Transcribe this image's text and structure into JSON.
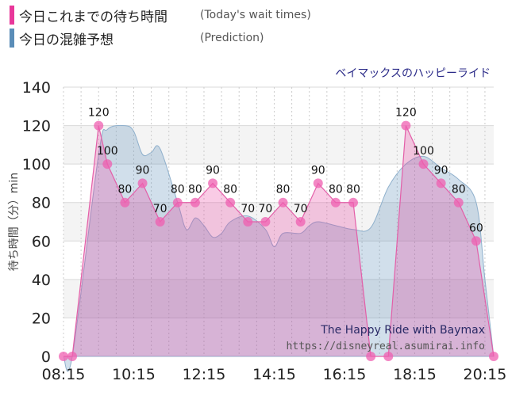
{
  "legend": [
    {
      "label": "今日これまでの待ち時間",
      "en": "(Today's wait times)",
      "color": "#e8379a"
    },
    {
      "label": "今日の混雑予想",
      "en": "(Prediction)",
      "color": "#5a8db8"
    }
  ],
  "chart_data": {
    "type": "area",
    "title": "ベイマックスのハッピーライド",
    "ylabel": "待ち時間（分）min",
    "ylim": [
      0,
      140
    ],
    "yticks": [
      0,
      20,
      40,
      60,
      80,
      100,
      120,
      140
    ],
    "xlim": [
      "08:15",
      "20:30"
    ],
    "xticks": [
      "08:15",
      "10:15",
      "12:15",
      "14:15",
      "16:15",
      "18:15",
      "20:15"
    ],
    "grid": true,
    "series": [
      {
        "name": "今日これまでの待ち時間",
        "color": "#e8379a",
        "points": [
          {
            "t": "08:15",
            "v": 0,
            "label": ""
          },
          {
            "t": "08:30",
            "v": 0,
            "label": ""
          },
          {
            "t": "09:15",
            "v": 120,
            "label": "120"
          },
          {
            "t": "09:30",
            "v": 100,
            "label": "100"
          },
          {
            "t": "10:00",
            "v": 80,
            "label": "80"
          },
          {
            "t": "10:30",
            "v": 90,
            "label": "90"
          },
          {
            "t": "11:00",
            "v": 70,
            "label": "70"
          },
          {
            "t": "11:30",
            "v": 80,
            "label": "80"
          },
          {
            "t": "12:00",
            "v": 80,
            "label": "80"
          },
          {
            "t": "12:30",
            "v": 90,
            "label": "90"
          },
          {
            "t": "13:00",
            "v": 80,
            "label": "80"
          },
          {
            "t": "13:30",
            "v": 70,
            "label": "70"
          },
          {
            "t": "14:00",
            "v": 70,
            "label": "70"
          },
          {
            "t": "14:30",
            "v": 80,
            "label": "80"
          },
          {
            "t": "15:00",
            "v": 70,
            "label": "70"
          },
          {
            "t": "15:30",
            "v": 90,
            "label": "90"
          },
          {
            "t": "16:00",
            "v": 80,
            "label": "80"
          },
          {
            "t": "16:30",
            "v": 80,
            "label": "80"
          },
          {
            "t": "17:00",
            "v": 0,
            "label": ""
          },
          {
            "t": "17:30",
            "v": 0,
            "label": ""
          },
          {
            "t": "18:00",
            "v": 120,
            "label": "120"
          },
          {
            "t": "18:30",
            "v": 100,
            "label": "100"
          },
          {
            "t": "19:00",
            "v": 90,
            "label": "90"
          },
          {
            "t": "19:30",
            "v": 80,
            "label": "80"
          },
          {
            "t": "20:00",
            "v": 60,
            "label": "60"
          },
          {
            "t": "20:30",
            "v": 0,
            "label": ""
          }
        ]
      },
      {
        "name": "今日の混雑予想",
        "color": "#5a8db8",
        "points": [
          {
            "t": "08:15",
            "v": 0
          },
          {
            "t": "08:30",
            "v": 0
          },
          {
            "t": "09:15",
            "v": 105
          },
          {
            "t": "09:30",
            "v": 118
          },
          {
            "t": "10:00",
            "v": 120
          },
          {
            "t": "10:15",
            "v": 117
          },
          {
            "t": "10:30",
            "v": 105
          },
          {
            "t": "10:45",
            "v": 106
          },
          {
            "t": "11:00",
            "v": 108
          },
          {
            "t": "11:30",
            "v": 80
          },
          {
            "t": "11:45",
            "v": 66
          },
          {
            "t": "12:00",
            "v": 72
          },
          {
            "t": "12:15",
            "v": 68
          },
          {
            "t": "12:30",
            "v": 62
          },
          {
            "t": "12:45",
            "v": 64
          },
          {
            "t": "13:00",
            "v": 70
          },
          {
            "t": "13:30",
            "v": 73
          },
          {
            "t": "14:00",
            "v": 66
          },
          {
            "t": "14:15",
            "v": 57
          },
          {
            "t": "14:30",
            "v": 64
          },
          {
            "t": "15:00",
            "v": 64
          },
          {
            "t": "15:15",
            "v": 68
          },
          {
            "t": "15:30",
            "v": 70
          },
          {
            "t": "16:00",
            "v": 68
          },
          {
            "t": "16:30",
            "v": 66
          },
          {
            "t": "17:00",
            "v": 67
          },
          {
            "t": "17:30",
            "v": 88
          },
          {
            "t": "18:00",
            "v": 100
          },
          {
            "t": "18:30",
            "v": 104
          },
          {
            "t": "19:00",
            "v": 98
          },
          {
            "t": "19:30",
            "v": 92
          },
          {
            "t": "20:00",
            "v": 80
          },
          {
            "t": "20:15",
            "v": 40
          },
          {
            "t": "20:30",
            "v": 0
          }
        ]
      }
    ],
    "annotations": [
      "The Happy Ride with Baymax",
      "https://disneyreal.asumirai.info"
    ]
  }
}
